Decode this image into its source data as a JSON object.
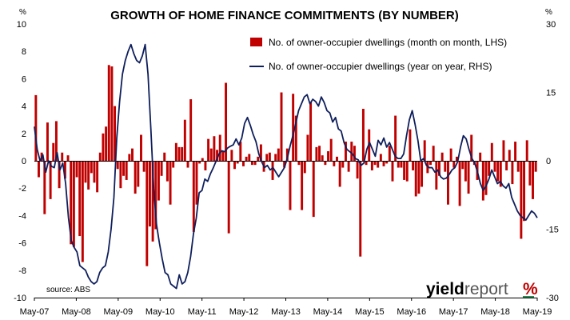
{
  "chart_data": {
    "type": "bar+line",
    "title": "GROWTH OF HOME FINANCE COMMITMENTS (BY NUMBER)",
    "y_left_unit": "%",
    "y_right_unit": "%",
    "y_left_range": [
      -10,
      10
    ],
    "y_right_range": [
      -30,
      30
    ],
    "y_left_ticks": [
      "10",
      "8",
      "6",
      "4",
      "2",
      "0",
      "-2",
      "-4",
      "-6",
      "-8",
      "-10"
    ],
    "y_right_ticks": [
      "30",
      "15",
      "0",
      "-15",
      "-30"
    ],
    "x_tick_labels": [
      "May-07",
      "May-08",
      "May-09",
      "May-10",
      "May-11",
      "May-12",
      "May-13",
      "May-14",
      "May-15",
      "May-16",
      "May-17",
      "May-18",
      "May-19"
    ],
    "legend_position": "top-right",
    "colors": {
      "bars": "#c00000",
      "line": "#0f1f5c"
    },
    "source": "source: ABS",
    "brand": {
      "prefix": "yield",
      "suffix": "report",
      "mark": "%"
    },
    "series": [
      {
        "name": "No. of owner-occupier dwellings (month on month, LHS)",
        "kind": "bar",
        "axis": "left",
        "values": [
          4.8,
          -1.2,
          0.6,
          -3.9,
          2.8,
          -2.8,
          1.3,
          2.9,
          -2.0,
          0.6,
          -1.3,
          0.4,
          -6.1,
          -6.3,
          -1.2,
          -5.5,
          -7.4,
          -1.6,
          -2.1,
          -0.9,
          -1.6,
          -2.3,
          0.6,
          2.0,
          2.5,
          7.0,
          6.9,
          4.0,
          -0.6,
          -2.0,
          -1.1,
          -1.4,
          0.5,
          0.9,
          -2.4,
          -1.9,
          1.9,
          -0.8,
          -7.7,
          -4.8,
          -5.9,
          -5.0,
          -2.9,
          -1.1,
          0.6,
          -1.5,
          -3.2,
          -0.5,
          1.3,
          1.0,
          1.0,
          3.0,
          -0.5,
          4.5,
          -5.2,
          -3.2,
          -0.2,
          0.2,
          -0.7,
          1.6,
          0.9,
          1.8,
          0.8,
          1.9,
          0.7,
          5.7,
          -5.3,
          0.8,
          -0.6,
          -0.2,
          1.4,
          -0.4,
          0.3,
          0.5,
          -0.3,
          -0.3,
          0.3,
          1.2,
          -0.8,
          0.5,
          0.6,
          -1.4,
          0.5,
          0.9,
          5.0,
          -0.5,
          0.9,
          -3.6,
          4.9,
          3.3,
          -0.3,
          -3.6,
          -0.9,
          1.9,
          4.3,
          -4.1,
          1.0,
          1.1,
          0.4,
          -0.3,
          0.7,
          1.6,
          -0.4,
          0.3,
          -1.9,
          -0.5,
          1.4,
          -0.8,
          1.4,
          1.1,
          -1.3,
          -7.0,
          3.8,
          -0.3,
          2.3,
          -0.7,
          -0.3,
          -0.5,
          0.5,
          -0.4,
          -0.2,
          1.1,
          -1.5,
          3.3,
          -0.5,
          -0.5,
          -1.4,
          -1.5,
          2.3,
          -0.7,
          -2.6,
          -2.4,
          -1.9,
          1.5,
          -0.9,
          -0.3,
          1.1,
          -2.1,
          -1.1,
          0.6,
          -0.8,
          -3.2,
          0.9,
          -0.5,
          0.3,
          -3.3,
          -0.6,
          -1.5,
          -2.4,
          1.9,
          -0.3,
          -1.4,
          0.6,
          -2.9,
          -2.5,
          -1.1,
          1.3,
          -0.8,
          -1.5,
          -1.9,
          1.5,
          -0.7,
          0.8,
          -1.7,
          1.4,
          -0.8,
          -5.7,
          -4.4,
          1.5,
          -1.8,
          -2.8,
          -0.8
        ]
      },
      {
        "name": "No. of owner-occupier dwellings (year on year, RHS)",
        "kind": "line",
        "axis": "right",
        "values": [
          7.5,
          2.5,
          0.0,
          1.3,
          -2.5,
          0.0,
          -1.2,
          -1.5,
          1.8,
          -2.0,
          -0.5,
          -5.0,
          -12.5,
          -17.5,
          -19.0,
          -20.0,
          -23.0,
          -23.5,
          -24.0,
          -25.5,
          -26.5,
          -27.0,
          -26.5,
          -24.5,
          -23.5,
          -23.0,
          -20.0,
          -15.0,
          -8.0,
          5.0,
          13.0,
          19.0,
          22.0,
          24.0,
          25.5,
          23.5,
          22.0,
          21.5,
          23.0,
          25.5,
          19.0,
          7.0,
          -6.0,
          -14.0,
          -18.0,
          -21.5,
          -24.5,
          -25.0,
          -27.0,
          -27.5,
          -28.0,
          -25.0,
          -27.0,
          -26.5,
          -24.5,
          -21.0,
          -16.0,
          -12.5,
          -7.0,
          -6.5,
          -4.0,
          -4.5,
          -2.8,
          -1.5,
          0.0,
          1.5,
          2.2,
          2.0,
          2.8,
          3.2,
          3.5,
          4.8,
          3.5,
          5.0,
          8.2,
          9.5,
          7.8,
          5.8,
          4.2,
          1.5,
          -0.2,
          -1.5,
          -1.0,
          -2.0,
          -1.5,
          -2.5,
          -3.5,
          -2.5,
          -1.5,
          0.5,
          3.2,
          5.5,
          8.2,
          11.0,
          12.5,
          14.0,
          14.5,
          12.5,
          13.5,
          13.0,
          12.0,
          14.0,
          12.8,
          11.0,
          10.5,
          8.5,
          9.5,
          7.0,
          6.5,
          4.0,
          2.5,
          2.0,
          1.5,
          0.5,
          0.2,
          -1.0,
          -0.5,
          2.5,
          4.0,
          2.5,
          1.0,
          4.5,
          3.5,
          5.0,
          3.0,
          4.0,
          2.5,
          1.0,
          0.5,
          0.5,
          1.5,
          5.5,
          9.0,
          11.0,
          8.0,
          4.5,
          0.0,
          0.5,
          -1.0,
          -1.5,
          -1.5,
          -2.5,
          -2.0,
          -3.5,
          -4.0,
          -3.8,
          -3.0,
          -2.0,
          -1.5,
          -0.2,
          3.0,
          5.5,
          4.8,
          2.5,
          0.5,
          -0.5,
          -2.5,
          -5.0,
          -6.5,
          -5.5,
          -4.0,
          -2.0,
          -3.5,
          -5.0,
          -4.5,
          -5.5,
          -6.0,
          -5.0,
          -8.0,
          -9.5,
          -11.0,
          -12.0,
          -12.5,
          -13.0,
          -12.0,
          -11.0,
          -11.5,
          -12.5
        ]
      }
    ]
  }
}
